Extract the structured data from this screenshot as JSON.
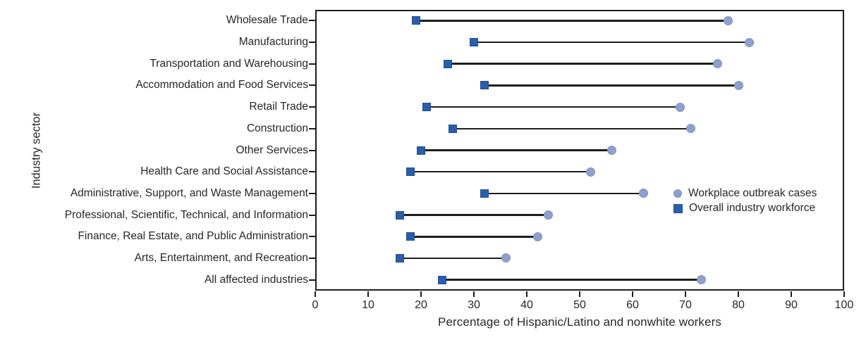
{
  "chart_data": {
    "type": "dumbbell",
    "title": "",
    "xlabel": "Percentage of Hispanic/Latino and nonwhite workers",
    "ylabel": "Industry sector",
    "xlim": [
      0,
      100
    ],
    "x_ticks": [
      0,
      10,
      20,
      30,
      40,
      50,
      60,
      70,
      80,
      90,
      100
    ],
    "grid": "off",
    "legend_position": "inside-right",
    "categories": [
      "Wholesale Trade",
      "Manufacturing",
      "Transportation and Warehousing",
      "Accommodation and Food Services",
      "Retail Trade",
      "Construction",
      "Other Services",
      "Health Care and Social Assistance",
      "Administrative, Support, and Waste Management",
      "Professional, Scientific, Technical, and Information",
      "Finance, Real Estate, and Public Administration",
      "Arts, Entertainment, and Recreation",
      "All affected industries"
    ],
    "series": [
      {
        "name": "Workplace outbreak cases",
        "marker": "circle",
        "color": "#8da1cc",
        "edge_color": "#7e93c0",
        "values": [
          78,
          82,
          76,
          80,
          69,
          71,
          56,
          52,
          62,
          44,
          42,
          36,
          73
        ]
      },
      {
        "name": "Overall industry workforce",
        "marker": "square",
        "color": "#2b5ea9",
        "edge_color": "#1f4f9a",
        "values": [
          19,
          30,
          25,
          32,
          21,
          26,
          20,
          18,
          32,
          16,
          18,
          16,
          24
        ]
      }
    ],
    "connector_color": "#1d1d1b",
    "axis_color": "#1d1d1b",
    "text_color": "#262626"
  }
}
